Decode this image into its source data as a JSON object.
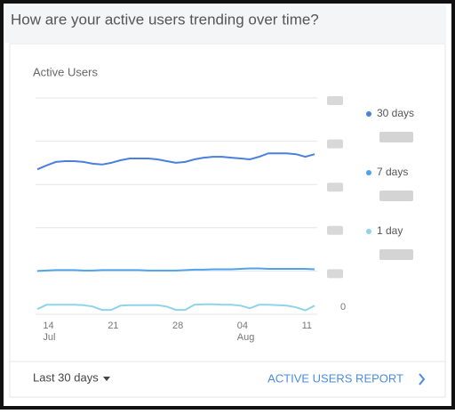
{
  "header": {
    "title": "How are your active users trending over time?"
  },
  "chart_data": {
    "type": "line",
    "title": "Active Users",
    "categories": [
      null,
      "14",
      null,
      null,
      null,
      null,
      null,
      null,
      "21",
      null,
      null,
      null,
      null,
      null,
      null,
      "28",
      null,
      null,
      null,
      null,
      null,
      null,
      "04",
      null,
      null,
      null,
      null,
      null,
      null,
      "11",
      null
    ],
    "category_months": [
      null,
      "Jul",
      null,
      null,
      null,
      null,
      null,
      null,
      null,
      null,
      null,
      null,
      null,
      null,
      null,
      null,
      null,
      null,
      null,
      null,
      null,
      null,
      "Aug",
      null,
      null,
      null,
      null,
      null,
      null,
      null,
      null
    ],
    "series": [
      {
        "name": "30 days",
        "color": "#4a7fe0",
        "values": [
          3.35,
          3.44,
          3.52,
          3.54,
          3.54,
          3.52,
          3.48,
          3.46,
          3.5,
          3.56,
          3.6,
          3.6,
          3.6,
          3.58,
          3.54,
          3.5,
          3.52,
          3.58,
          3.62,
          3.64,
          3.64,
          3.62,
          3.6,
          3.58,
          3.64,
          3.72,
          3.72,
          3.72,
          3.7,
          3.64,
          3.7
        ]
      },
      {
        "name": "7 days",
        "color": "#4fa3ee",
        "values": [
          1.0,
          1.01,
          1.02,
          1.02,
          1.02,
          1.01,
          1.01,
          1.02,
          1.02,
          1.02,
          1.02,
          1.02,
          1.01,
          1.01,
          1.01,
          1.01,
          1.02,
          1.03,
          1.03,
          1.04,
          1.04,
          1.04,
          1.05,
          1.06,
          1.06,
          1.05,
          1.05,
          1.05,
          1.05,
          1.05,
          1.04
        ]
      },
      {
        "name": "1 day",
        "color": "#8fd4ea",
        "values": [
          0.12,
          0.22,
          0.22,
          0.22,
          0.22,
          0.21,
          0.18,
          0.1,
          0.1,
          0.2,
          0.21,
          0.21,
          0.21,
          0.21,
          0.18,
          0.1,
          0.1,
          0.22,
          0.23,
          0.23,
          0.22,
          0.22,
          0.2,
          0.14,
          0.22,
          0.22,
          0.21,
          0.2,
          0.16,
          0.09,
          0.2
        ]
      }
    ],
    "ylim": [
      0,
      5
    ],
    "yticks": [
      0,
      1,
      2,
      3,
      4,
      5
    ],
    "ytick_label_shown": [
      true,
      false,
      false,
      false,
      false,
      false
    ],
    "grid": true
  },
  "footer": {
    "range": "Last 30 days",
    "link": "ACTIVE USERS REPORT"
  }
}
